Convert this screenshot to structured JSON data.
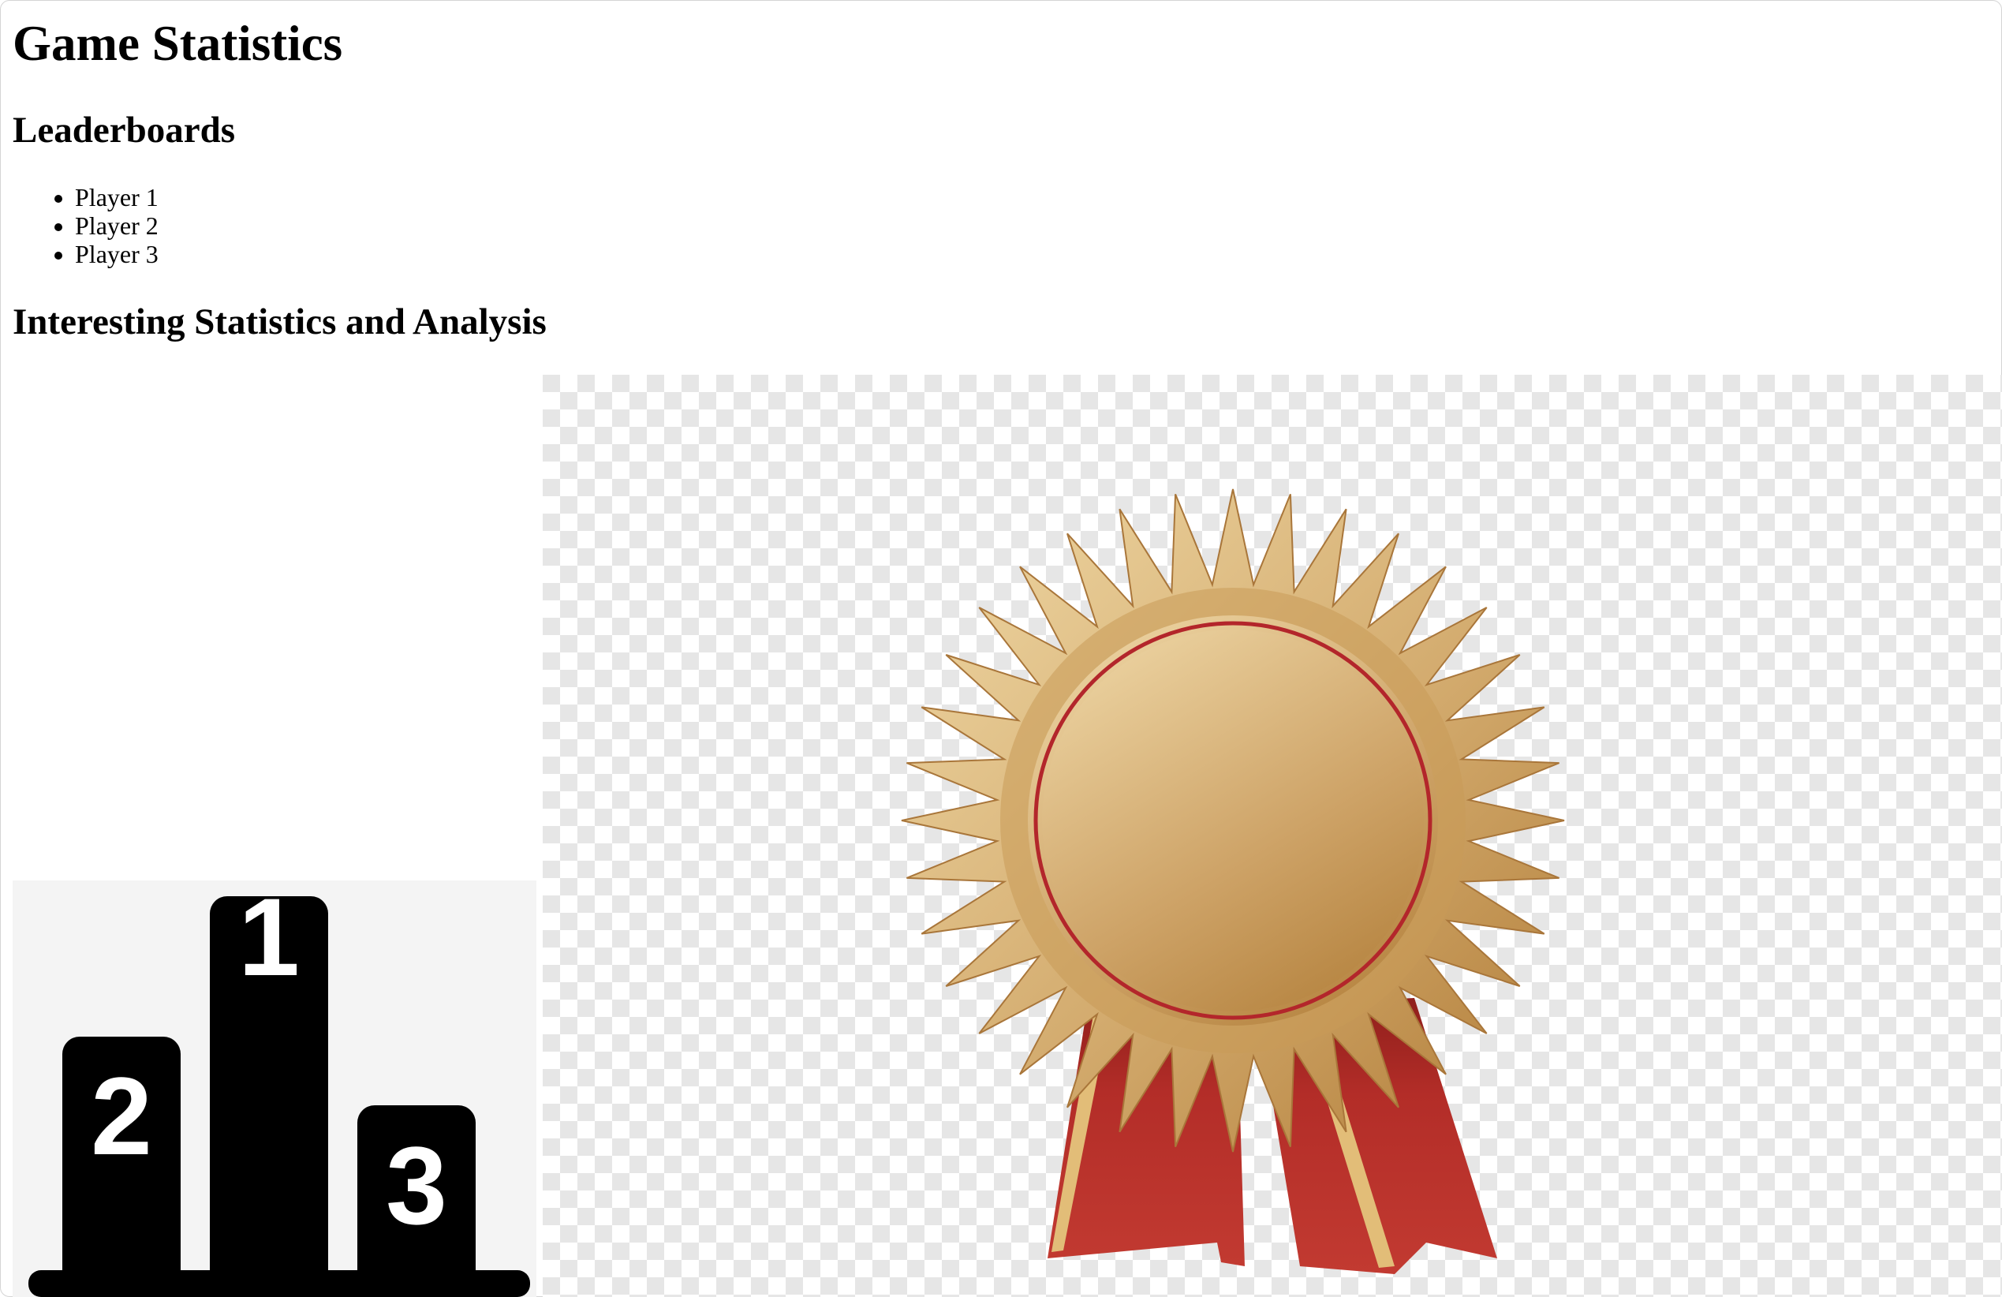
{
  "page": {
    "title": "Game Statistics"
  },
  "leaderboards": {
    "heading": "Leaderboards",
    "players": [
      "Player 1",
      "Player 2",
      "Player 3"
    ]
  },
  "statistics": {
    "heading": "Interesting Statistics and Analysis"
  },
  "images": {
    "podium": {
      "icon": "podium-icon",
      "ranks": [
        "1",
        "2",
        "3"
      ]
    },
    "badge": {
      "icon": "award-ribbon-icon"
    }
  },
  "colors": {
    "gold_light": "#edd5a3",
    "gold_dark": "#b8873f",
    "ribbon_red": "#b32d28",
    "checker_gray": "#e6e6e6",
    "podium_black": "#000000"
  }
}
